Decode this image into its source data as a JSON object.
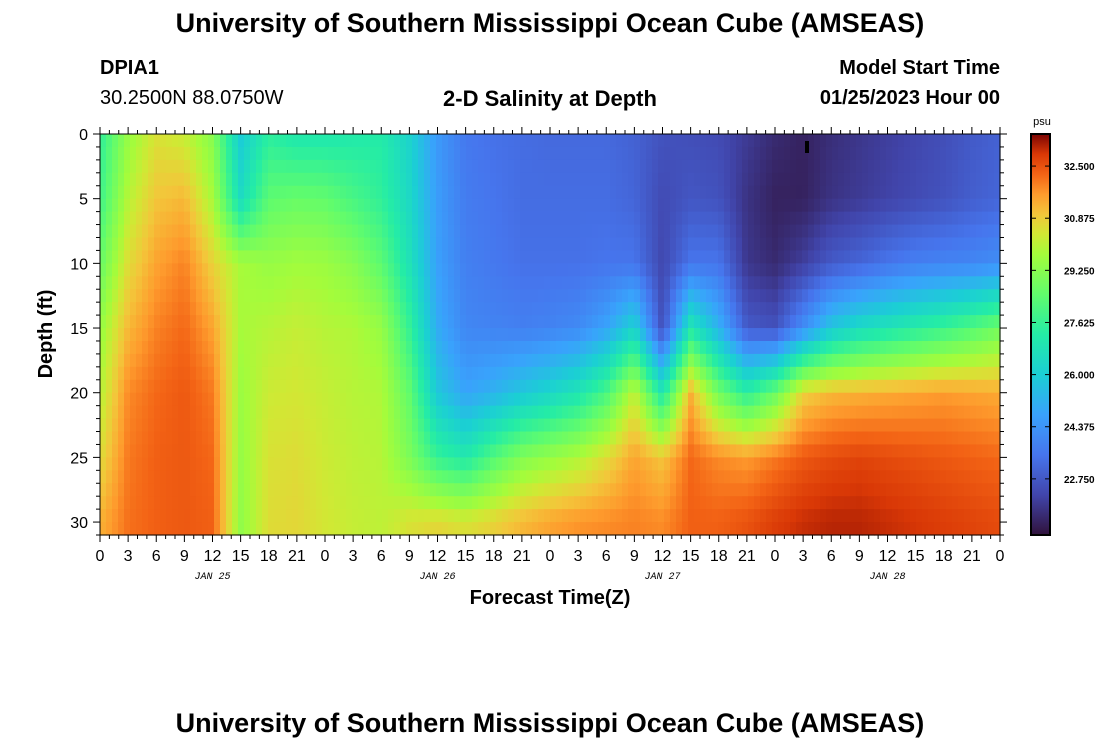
{
  "header": {
    "title": "University of Southern Mississippi Ocean Cube (AMSEAS)",
    "station_id": "DPIA1",
    "coordinates": "30.2500N  88.0750W",
    "subtitle": "2-D Salinity at Depth",
    "model_start_label": "Model Start Time",
    "model_start_value": "01/25/2023 Hour 00"
  },
  "footer": {
    "title": "University of Southern Mississippi Ocean Cube (AMSEAS)"
  },
  "chart_data": {
    "type": "heatmap",
    "title": "2-D Salinity at Depth",
    "xlabel": "Forecast Time(Z)",
    "ylabel": "Depth (ft)",
    "x_tick_labels": [
      "0",
      "3",
      "6",
      "9",
      "12",
      "15",
      "18",
      "21",
      "0",
      "3",
      "6",
      "9",
      "12",
      "15",
      "18",
      "21",
      "0",
      "3",
      "6",
      "9",
      "12",
      "15",
      "18",
      "21",
      "0",
      "3",
      "6",
      "9",
      "12",
      "15",
      "18",
      "21",
      "0"
    ],
    "x_range_hours": [
      0,
      96
    ],
    "day_labels": [
      {
        "label": "JAN 25",
        "hour": 12
      },
      {
        "label": "JAN 26",
        "hour": 36
      },
      {
        "label": "JAN 27",
        "hour": 60
      },
      {
        "label": "JAN 28",
        "hour": 84
      }
    ],
    "y_ticks": [
      "0",
      "5",
      "10",
      "15",
      "20",
      "25",
      "30"
    ],
    "y_range_ft": [
      0,
      31
    ],
    "colorbar": {
      "unit": "psu",
      "labels": [
        "32.500",
        "30.875",
        "29.250",
        "27.625",
        "26.000",
        "24.375",
        "22.750"
      ],
      "range": [
        21.0,
        33.5
      ]
    },
    "salinity_profiles": {
      "hours": [
        0,
        3,
        6,
        9,
        12,
        15,
        18,
        21,
        24,
        27,
        30,
        33,
        36,
        39,
        42,
        45,
        48,
        51,
        54,
        57,
        60,
        63,
        66,
        69,
        72,
        75,
        78,
        81,
        84,
        87,
        90,
        93,
        96
      ],
      "depths_ft": [
        0,
        5,
        10,
        15,
        20,
        25,
        30
      ],
      "values": [
        [
          27.5,
          27.8,
          28.6,
          29.5,
          30.0,
          30.6,
          31.3
        ],
        [
          29.5,
          30.0,
          30.6,
          31.2,
          31.8,
          32.0,
          32.1
        ],
        [
          30.5,
          31.0,
          31.5,
          31.9,
          32.2,
          32.3,
          32.3
        ],
        [
          30.2,
          31.2,
          31.9,
          32.2,
          32.4,
          32.4,
          32.4
        ],
        [
          29.2,
          29.8,
          30.8,
          31.5,
          32.0,
          32.2,
          32.3
        ],
        [
          25.9,
          26.5,
          29.8,
          29.8,
          29.6,
          29.5,
          29.4
        ],
        [
          27.4,
          28.4,
          29.5,
          30.0,
          30.3,
          30.5,
          30.6
        ],
        [
          27.0,
          28.6,
          29.7,
          30.2,
          30.4,
          30.6,
          30.7
        ],
        [
          27.0,
          28.5,
          29.6,
          30.0,
          30.2,
          30.3,
          30.4
        ],
        [
          27.1,
          28.0,
          29.2,
          29.9,
          30.0,
          30.1,
          30.2
        ],
        [
          27.2,
          27.5,
          28.4,
          29.5,
          29.9,
          30.0,
          30.1
        ],
        [
          26.2,
          26.4,
          26.8,
          27.6,
          28.5,
          29.0,
          30.5
        ],
        [
          24.5,
          24.6,
          24.7,
          25.0,
          25.8,
          27.6,
          30.7
        ],
        [
          23.6,
          23.7,
          23.8,
          24.0,
          24.8,
          27.1,
          30.5
        ],
        [
          23.4,
          23.5,
          23.6,
          23.9,
          25.2,
          28.2,
          30.8
        ],
        [
          23.3,
          23.3,
          23.4,
          23.8,
          25.8,
          29.1,
          31.2
        ],
        [
          23.2,
          23.3,
          23.4,
          23.9,
          26.3,
          29.5,
          31.5
        ],
        [
          23.2,
          23.3,
          23.4,
          24.1,
          26.9,
          29.9,
          31.7
        ],
        [
          23.2,
          23.3,
          23.5,
          24.8,
          28.0,
          30.6,
          31.8
        ],
        [
          23.0,
          23.1,
          23.5,
          26.2,
          30.2,
          31.5,
          31.9
        ],
        [
          22.6,
          22.4,
          22.3,
          22.5,
          27.0,
          31.0,
          31.8
        ],
        [
          22.5,
          22.7,
          23.5,
          27.0,
          31.3,
          32.2,
          32.3
        ],
        [
          22.4,
          22.6,
          23.5,
          25.2,
          28.8,
          31.8,
          32.3
        ],
        [
          22.0,
          21.8,
          21.9,
          22.8,
          27.4,
          31.6,
          32.5
        ],
        [
          21.6,
          21.4,
          21.6,
          22.6,
          28.6,
          32.0,
          32.8
        ],
        [
          21.4,
          21.4,
          22.1,
          24.2,
          30.8,
          32.4,
          33.0
        ],
        [
          21.7,
          21.8,
          22.8,
          25.8,
          31.2,
          32.6,
          33.1
        ],
        [
          21.9,
          22.0,
          23.1,
          26.5,
          31.3,
          32.7,
          33.1
        ],
        [
          22.1,
          22.2,
          23.5,
          26.9,
          31.4,
          32.6,
          33.0
        ],
        [
          22.3,
          22.4,
          23.8,
          27.3,
          31.5,
          32.5,
          32.9
        ],
        [
          22.5,
          22.6,
          23.9,
          27.7,
          31.6,
          32.4,
          32.8
        ],
        [
          22.8,
          22.9,
          24.0,
          28.2,
          31.5,
          32.3,
          32.7
        ],
        [
          23.0,
          23.1,
          24.2,
          28.8,
          31.4,
          32.2,
          32.6
        ]
      ]
    }
  }
}
